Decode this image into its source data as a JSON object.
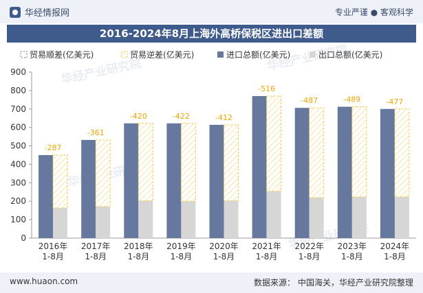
{
  "header": {
    "brand": "华经情报网",
    "slogan": "专业严谨 ● 客观科学",
    "title": "2016-2024年8月上海外高桥保税区进出口差额"
  },
  "footer": {
    "site": "www.huaon.com",
    "source_label": "数据来源：",
    "source_text": "中国海关，华经产业研究院整理"
  },
  "watermark": "华经产业研究院",
  "colors": {
    "title_bg": "#3f5b8c",
    "import": "#66789e",
    "export": "#d6d6d6",
    "deficit_dash": "#f2c94c",
    "label": "#f0a500"
  },
  "chart_data": {
    "type": "bar",
    "categories": [
      "2016年\n1-8月",
      "2017年\n1-8月",
      "2018年\n1-8月",
      "2019年\n1-8月",
      "2020年\n1-8月",
      "2021年\n1-8月",
      "2022年\n1-8月",
      "2023年\n1-8月",
      "2024年\n1-8月"
    ],
    "series": [
      {
        "name": "贸易顺差(亿美元)",
        "values": [
          0,
          0,
          0,
          0,
          0,
          0,
          0,
          0,
          0
        ]
      },
      {
        "name": "贸易逆差(亿美元)",
        "values": [
          -287,
          -361,
          -420,
          -422,
          -412,
          -516,
          -487,
          -489,
          -477
        ]
      },
      {
        "name": "进口总额(亿美元)",
        "values": [
          450,
          532,
          622,
          622,
          614,
          770,
          706,
          712,
          700
        ]
      },
      {
        "name": "出口总额(亿美元)",
        "values": [
          163,
          171,
          202,
          200,
          202,
          254,
          219,
          223,
          223
        ]
      }
    ],
    "ylim": [
      0,
      900
    ],
    "yticks": [
      "0",
      "100",
      "200",
      "300",
      "400",
      "500",
      "600",
      "700",
      "800",
      "900"
    ],
    "legend": "top",
    "grid": false
  }
}
